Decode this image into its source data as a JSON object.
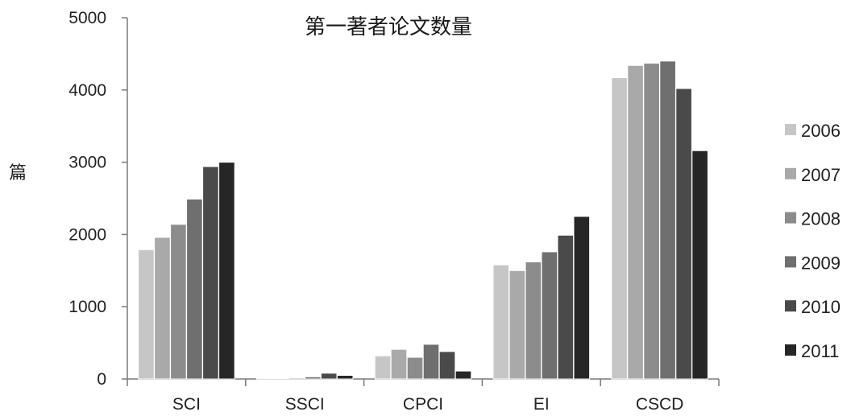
{
  "chart_data": {
    "type": "bar",
    "title": "第一著者论文数量",
    "xlabel": "",
    "ylabel": "篇",
    "ylim": [
      0,
      5000
    ],
    "yticks": [
      0,
      1000,
      2000,
      3000,
      4000,
      5000
    ],
    "categories": [
      "SCI",
      "SSCI",
      "CPCI",
      "EI",
      "CSCD"
    ],
    "legend_position": "right",
    "grid": false,
    "series": [
      {
        "name": "2006",
        "color": "#c6c6c6",
        "values": [
          1790,
          5,
          320,
          1580,
          4170
        ]
      },
      {
        "name": "2007",
        "color": "#a9a9a9",
        "values": [
          1960,
          8,
          410,
          1500,
          4340
        ]
      },
      {
        "name": "2008",
        "color": "#8c8c8c",
        "values": [
          2140,
          15,
          300,
          1620,
          4370
        ]
      },
      {
        "name": "2009",
        "color": "#6f6f6f",
        "values": [
          2490,
          30,
          480,
          1760,
          4400
        ]
      },
      {
        "name": "2010",
        "color": "#4a4a4a",
        "values": [
          2940,
          80,
          380,
          1990,
          4020
        ]
      },
      {
        "name": "2011",
        "color": "#262626",
        "values": [
          3000,
          50,
          110,
          2250,
          3160
        ]
      }
    ]
  }
}
